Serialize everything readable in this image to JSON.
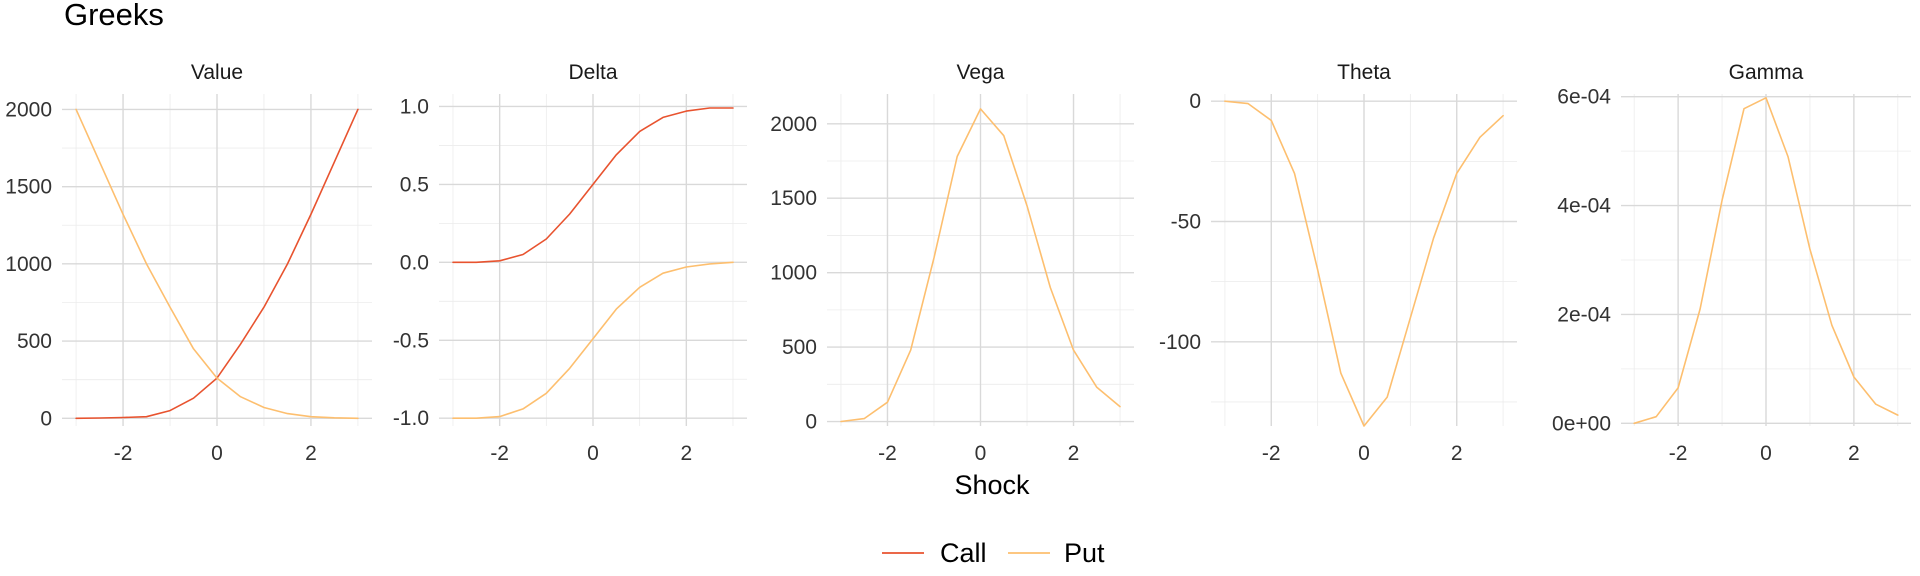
{
  "chart_data": {
    "type": "line",
    "title": "Greeks",
    "xlabel": "Shock",
    "legend": {
      "position": "bottom",
      "entries": [
        {
          "name": "Call",
          "color": "#e8532f"
        },
        {
          "name": "Put",
          "color": "#fdbf6f"
        }
      ]
    },
    "x": [
      -3,
      -2.5,
      -2,
      -1.5,
      -1,
      -0.5,
      0,
      0.5,
      1,
      1.5,
      2,
      2.5,
      3
    ],
    "xlim": [
      -3.3,
      3.3
    ],
    "xticks": [
      {
        "value": -2,
        "label": "-2"
      },
      {
        "value": 0,
        "label": "0"
      },
      {
        "value": 2,
        "label": "2"
      }
    ],
    "grid": true,
    "panels": [
      {
        "title": "Value",
        "ylim": [
          -50,
          2100
        ],
        "yticks": [
          {
            "value": 0,
            "label": "0"
          },
          {
            "value": 500,
            "label": "500"
          },
          {
            "value": 1000,
            "label": "1000"
          },
          {
            "value": 1500,
            "label": "1500"
          },
          {
            "value": 2000,
            "label": "2000"
          }
        ],
        "series": [
          {
            "name": "Call",
            "values": [
              0,
              2,
              5,
              10,
              50,
              130,
              260,
              480,
              720,
              1000,
              1320,
              1660,
              2000
            ]
          },
          {
            "name": "Put",
            "values": [
              2000,
              1660,
              1320,
              1000,
              720,
              450,
              260,
              140,
              70,
              30,
              10,
              3,
              0
            ]
          }
        ]
      },
      {
        "title": "Delta",
        "ylim": [
          -1.05,
          1.08
        ],
        "yticks": [
          {
            "value": -1,
            "label": "-1.0"
          },
          {
            "value": -0.5,
            "label": "-0.5"
          },
          {
            "value": 0,
            "label": "0.0"
          },
          {
            "value": 0.5,
            "label": "0.5"
          },
          {
            "value": 1,
            "label": "1.0"
          }
        ],
        "series": [
          {
            "name": "Call",
            "values": [
              0,
              0,
              0.01,
              0.05,
              0.15,
              0.31,
              0.5,
              0.69,
              0.84,
              0.93,
              0.97,
              0.99,
              0.99
            ]
          },
          {
            "name": "Put",
            "values": [
              -1,
              -1,
              -0.99,
              -0.94,
              -0.84,
              -0.68,
              -0.49,
              -0.3,
              -0.16,
              -0.07,
              -0.03,
              -0.01,
              0
            ]
          }
        ]
      },
      {
        "title": "Vega",
        "ylim": [
          -30,
          2200
        ],
        "yticks": [
          {
            "value": 0,
            "label": "0"
          },
          {
            "value": 500,
            "label": "500"
          },
          {
            "value": 1000,
            "label": "1000"
          },
          {
            "value": 1500,
            "label": "1500"
          },
          {
            "value": 2000,
            "label": "2000"
          }
        ],
        "series": [
          {
            "name": "Put",
            "values": [
              0,
              20,
              130,
              480,
              1100,
              1780,
              2100,
              1920,
              1450,
              900,
              480,
              230,
              100
            ]
          }
        ]
      },
      {
        "title": "Theta",
        "ylim": [
          -135,
          3
        ],
        "yticks": [
          {
            "value": -100,
            "label": "-100"
          },
          {
            "value": -50,
            "label": "-50"
          },
          {
            "value": 0,
            "label": "0"
          }
        ],
        "series": [
          {
            "name": "Put",
            "values": [
              0,
              -1,
              -8,
              -30,
              -70,
              -113,
              -135,
              -123,
              -90,
              -57,
              -30,
              -15,
              -6
            ]
          }
        ]
      },
      {
        "title": "Gamma",
        "ylim": [
          -5e-06,
          0.000605
        ],
        "yticks": [
          {
            "value": 0,
            "label": "0e+00"
          },
          {
            "value": 0.0002,
            "label": "2e-04"
          },
          {
            "value": 0.0004,
            "label": "4e-04"
          },
          {
            "value": 0.0006,
            "label": "6e-04"
          }
        ],
        "series": [
          {
            "name": "Put",
            "values": [
              0,
              1.2e-05,
              6.5e-05,
              0.00021,
              0.00041,
              0.000578,
              0.000598,
              0.00049,
              0.00032,
              0.00018,
              8.5e-05,
              3.5e-05,
              1.5e-05
            ]
          }
        ]
      }
    ]
  }
}
